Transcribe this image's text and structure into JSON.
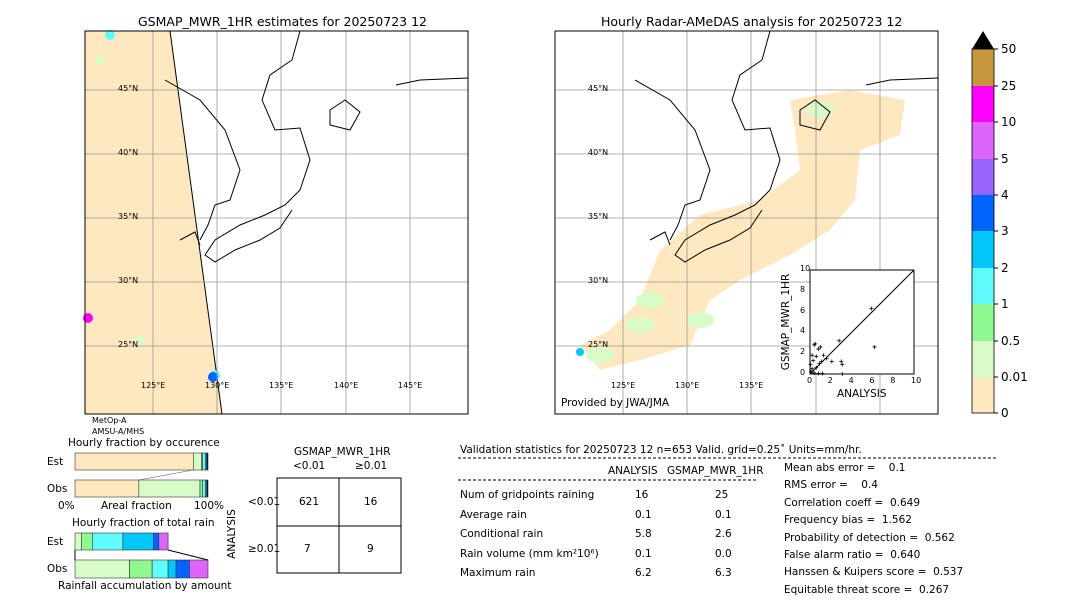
{
  "left_map": {
    "title": "GSMAP_MWR_1HR estimates for 20250723 12",
    "sensor_line1": "MetOp-A",
    "sensor_line2": "AMSU-A/MHS"
  },
  "right_map": {
    "title": "Hourly Radar-AMeDAS analysis for 20250723 12",
    "credit": "Provided by JWA/JMA"
  },
  "lat_labels": [
    "45°N",
    "40°N",
    "35°N",
    "30°N",
    "25°N"
  ],
  "lon_labels": [
    "125°E",
    "130°E",
    "135°E",
    "140°E",
    "145°E"
  ],
  "colorbar": {
    "labels": [
      "0",
      "0.01",
      "0.5",
      "1",
      "2",
      "3",
      "4",
      "5",
      "10",
      "25",
      "50"
    ],
    "colors": [
      "#fee8c0",
      "#d8fcc8",
      "#90f890",
      "#60fcfc",
      "#00c8f8",
      "#0064ff",
      "#9664f8",
      "#dc64f8",
      "#ff00ff",
      "#c8963c"
    ],
    "extend_color": "#000000"
  },
  "chart_data": [
    {
      "type": "scatter",
      "xlabel": "ANALYSIS",
      "ylabel": "GSMAP_MWR_1HR",
      "xlim": [
        0,
        10
      ],
      "ylim": [
        0,
        10
      ],
      "ticks": [
        "0",
        "2",
        "4",
        "6",
        "8",
        "10"
      ],
      "points": [
        [
          5.9,
          6.3
        ],
        [
          6.2,
          2.6
        ],
        [
          2.8,
          3.2
        ],
        [
          3.0,
          1.2
        ],
        [
          3.1,
          0.9
        ],
        [
          2.1,
          1.2
        ],
        [
          1.6,
          1.5
        ],
        [
          1.3,
          1.8
        ],
        [
          1.1,
          1.2
        ],
        [
          1.0,
          2.6
        ],
        [
          0.8,
          2.4
        ],
        [
          0.5,
          2.9
        ],
        [
          0.4,
          2.8
        ],
        [
          0.3,
          1.3
        ],
        [
          0.6,
          1.7
        ],
        [
          0.2,
          0.5
        ],
        [
          0.1,
          0.2
        ],
        [
          0.4,
          0.1
        ],
        [
          0.8,
          0.05
        ],
        [
          1.2,
          0.05
        ],
        [
          0.05,
          0.9
        ],
        [
          0.2,
          1.8
        ],
        [
          0.9,
          1.0
        ],
        [
          0.6,
          0.6
        ],
        [
          3.1,
          0.0
        ]
      ]
    },
    {
      "type": "bar",
      "title": "Hourly fraction by occurence",
      "xlabel": "Areal fraction",
      "x_ticks": [
        "0%",
        "100%"
      ],
      "categories": [
        "Est",
        "Obs"
      ],
      "series_fractions": {
        "Est": [
          0.89,
          0.06,
          0.01,
          0.02,
          0.01,
          0.01
        ],
        "Obs": [
          0.48,
          0.46,
          0.02,
          0.02,
          0.01,
          0.01
        ]
      }
    },
    {
      "type": "bar",
      "title": "Hourly fraction of total rain",
      "xlabel": "Rainfall accumulation by amount",
      "categories": [
        "Est",
        "Obs"
      ],
      "series_fractions": {
        "Est": [
          0.05,
          0.08,
          0.23,
          0.23,
          0.04,
          0.07
        ],
        "Obs": [
          0.41,
          0.17,
          0.12,
          0.06,
          0.1,
          0.14
        ]
      }
    }
  ],
  "contingency": {
    "title": "GSMAP_MWR_1HR",
    "col_labels": [
      "<0.01",
      "≥0.01"
    ],
    "row_axis": "ANALYSIS",
    "row_labels": [
      "<0.01",
      "≥0.01"
    ],
    "cells": [
      [
        "621",
        "16"
      ],
      [
        "7",
        "9"
      ]
    ]
  },
  "stats": {
    "header": "Validation statistics for 20250723 12  n=653 Valid. grid=0.25˚ Units=mm/hr.",
    "col1": "ANALYSIS",
    "col2": "GSMAP_MWR_1HR",
    "rows": [
      {
        "label": "Num of gridpoints raining",
        "a": "16",
        "g": "25"
      },
      {
        "label": "Average rain",
        "a": "0.1",
        "g": "0.1"
      },
      {
        "label": "Conditional rain",
        "a": "5.8",
        "g": "2.6"
      },
      {
        "label": "Rain volume (mm km²10⁶)",
        "a": "0.1",
        "g": "0.0"
      },
      {
        "label": "Maximum rain",
        "a": "6.2",
        "g": "6.3"
      }
    ],
    "scores": [
      "Mean abs error =    0.1",
      "RMS error =    0.4",
      "Correlation coeff =  0.649",
      "Frequency bias =  1.562",
      "Probability of detection =  0.562",
      "False alarm ratio =  0.640",
      "Hanssen & Kuipers score =  0.537",
      "Equitable threat score =  0.267"
    ]
  }
}
